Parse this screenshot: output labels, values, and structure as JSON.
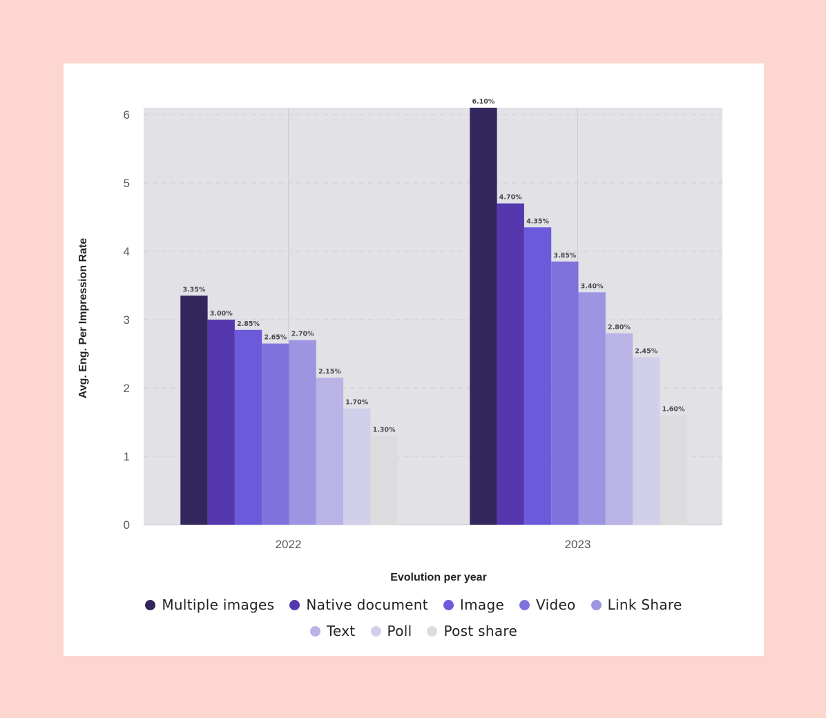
{
  "chart_data": {
    "type": "bar",
    "categories": [
      "2022",
      "2023"
    ],
    "xlabel": "Evolution per year",
    "ylabel": "Avg. Eng. Per Impression Rate",
    "ylim": [
      0,
      6.1
    ],
    "yticks": [
      0,
      1,
      2,
      3,
      4,
      5,
      6
    ],
    "grid": true,
    "legend_position": "bottom",
    "series": [
      {
        "name": "Multiple images",
        "color": "#33265c",
        "values": [
          3.35,
          6.1
        ],
        "labels": [
          "3.35%",
          "6.10%"
        ]
      },
      {
        "name": "Native document",
        "color": "#5538ad",
        "values": [
          3.0,
          4.7
        ],
        "labels": [
          "3.00%",
          "4.70%"
        ]
      },
      {
        "name": "Image",
        "color": "#6b5bdb",
        "values": [
          2.85,
          4.35
        ],
        "labels": [
          "2.85%",
          "4.35%"
        ]
      },
      {
        "name": "Video",
        "color": "#7f72dd",
        "values": [
          2.65,
          3.85
        ],
        "labels": [
          "2.65%",
          "3.85%"
        ]
      },
      {
        "name": "Link Share",
        "color": "#9d94e2",
        "values": [
          2.7,
          3.4
        ],
        "labels": [
          "2.70%",
          "3.40%"
        ]
      },
      {
        "name": "Text",
        "color": "#b9b3e6",
        "values": [
          2.15,
          2.8
        ],
        "labels": [
          "2.15%",
          "2.80%"
        ]
      },
      {
        "name": "Poll",
        "color": "#d2cfea",
        "values": [
          1.7,
          2.45
        ],
        "labels": [
          "1.70%",
          "2.45%"
        ]
      },
      {
        "name": "Post share",
        "color": "#dcdcdf",
        "values": [
          1.3,
          1.6
        ],
        "labels": [
          "1.30%",
          "1.60%"
        ]
      }
    ]
  },
  "legend": {
    "row1": [
      "Multiple images",
      "Native document",
      "Image",
      "Video",
      "Link Share"
    ],
    "row2": [
      "Text",
      "Poll",
      "Post share"
    ]
  },
  "colors": {
    "page_background": "#fdd7cf",
    "card_background": "#ffffff",
    "plot_background": "#e1e1e6"
  }
}
